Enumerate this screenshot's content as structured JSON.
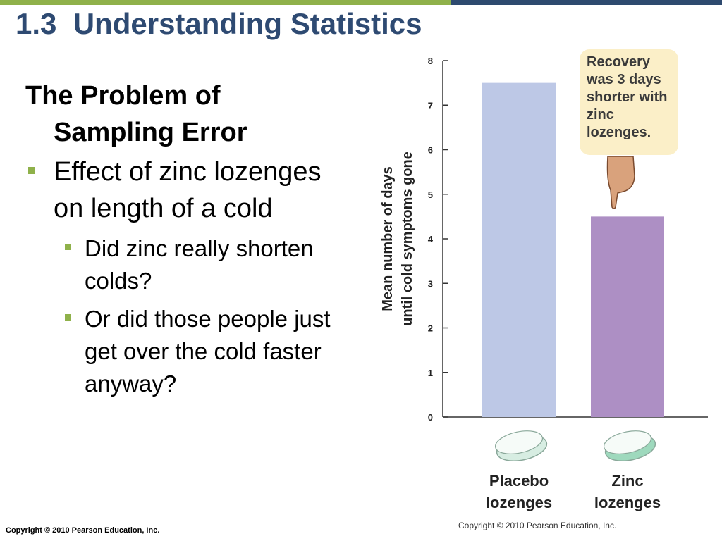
{
  "slide": {
    "title": "1.3  Understanding Statistics",
    "heading_line1": "The Problem of",
    "heading_line2": "Sampling Error",
    "bullets": [
      {
        "text": "Effect of zinc lozenges on length of a cold"
      }
    ],
    "sub_bullets": [
      {
        "text": "Did zinc really shorten colds?"
      },
      {
        "text": "Or did those people just get over the cold faster anyway?"
      }
    ],
    "footer": "Copyright © 2010 Pearson Education, Inc."
  },
  "chart_data": {
    "type": "bar",
    "categories": [
      "Placebo lozenges",
      "Zinc lozenges"
    ],
    "category_lines": [
      [
        "Placebo",
        "lozenges"
      ],
      [
        "Zinc",
        "lozenges"
      ]
    ],
    "values": [
      7.5,
      4.5
    ],
    "ylabel_lines": [
      "Mean number of days",
      "until cold symptoms gone"
    ],
    "ylim": [
      0,
      8
    ],
    "yticks": [
      0,
      1,
      2,
      3,
      4,
      5,
      6,
      7,
      8
    ],
    "bar_colors": [
      "#bdc8e6",
      "#ad8fc4"
    ],
    "lozenge_colors": [
      "#d7ede2",
      "#9ed9bd"
    ],
    "annotation": "Recovery was 3 days shorter with zinc lozenges.",
    "copyright": "Copyright © 2010 Pearson Education, Inc.",
    "grid": false,
    "legend": "none"
  },
  "colors": {
    "accent": "#8fb14a",
    "title": "#2e4a72",
    "callout_bg": "#fbefc8"
  }
}
